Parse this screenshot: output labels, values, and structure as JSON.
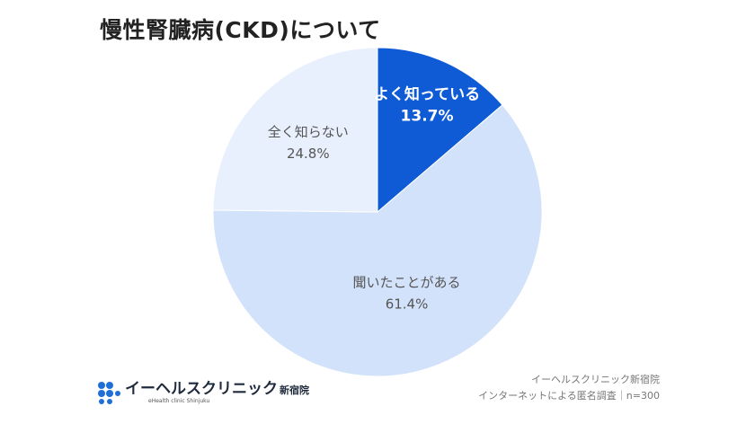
{
  "title": "慢性腎臓病(CKD)について",
  "chart_data": {
    "type": "pie",
    "title": "慢性腎臓病(CKD)について",
    "categories": [
      "よく知っている",
      "聞いたことがある",
      "全く知らない"
    ],
    "values": [
      13.7,
      61.4,
      24.8
    ],
    "value_labels": [
      "13.7%",
      "61.4%",
      "24.8%"
    ],
    "unit": "%",
    "start": "12 o'clock",
    "direction": "clockwise",
    "colors": [
      "#0f5bd6",
      "#d3e2fb",
      "#e8f0fd"
    ],
    "label_colors": [
      "#ffffff",
      "#555555",
      "#555555"
    ],
    "legend": "none"
  },
  "source": {
    "line1": "イーヘルスクリニック新宿院",
    "line2": "インターネットによる匿名調査｜n=300"
  },
  "logo": {
    "name": "イーヘルスクリニック",
    "branch": "新宿院",
    "subtitle": "eHealth clinic Shinjuku",
    "color": "#1f6fd6"
  }
}
